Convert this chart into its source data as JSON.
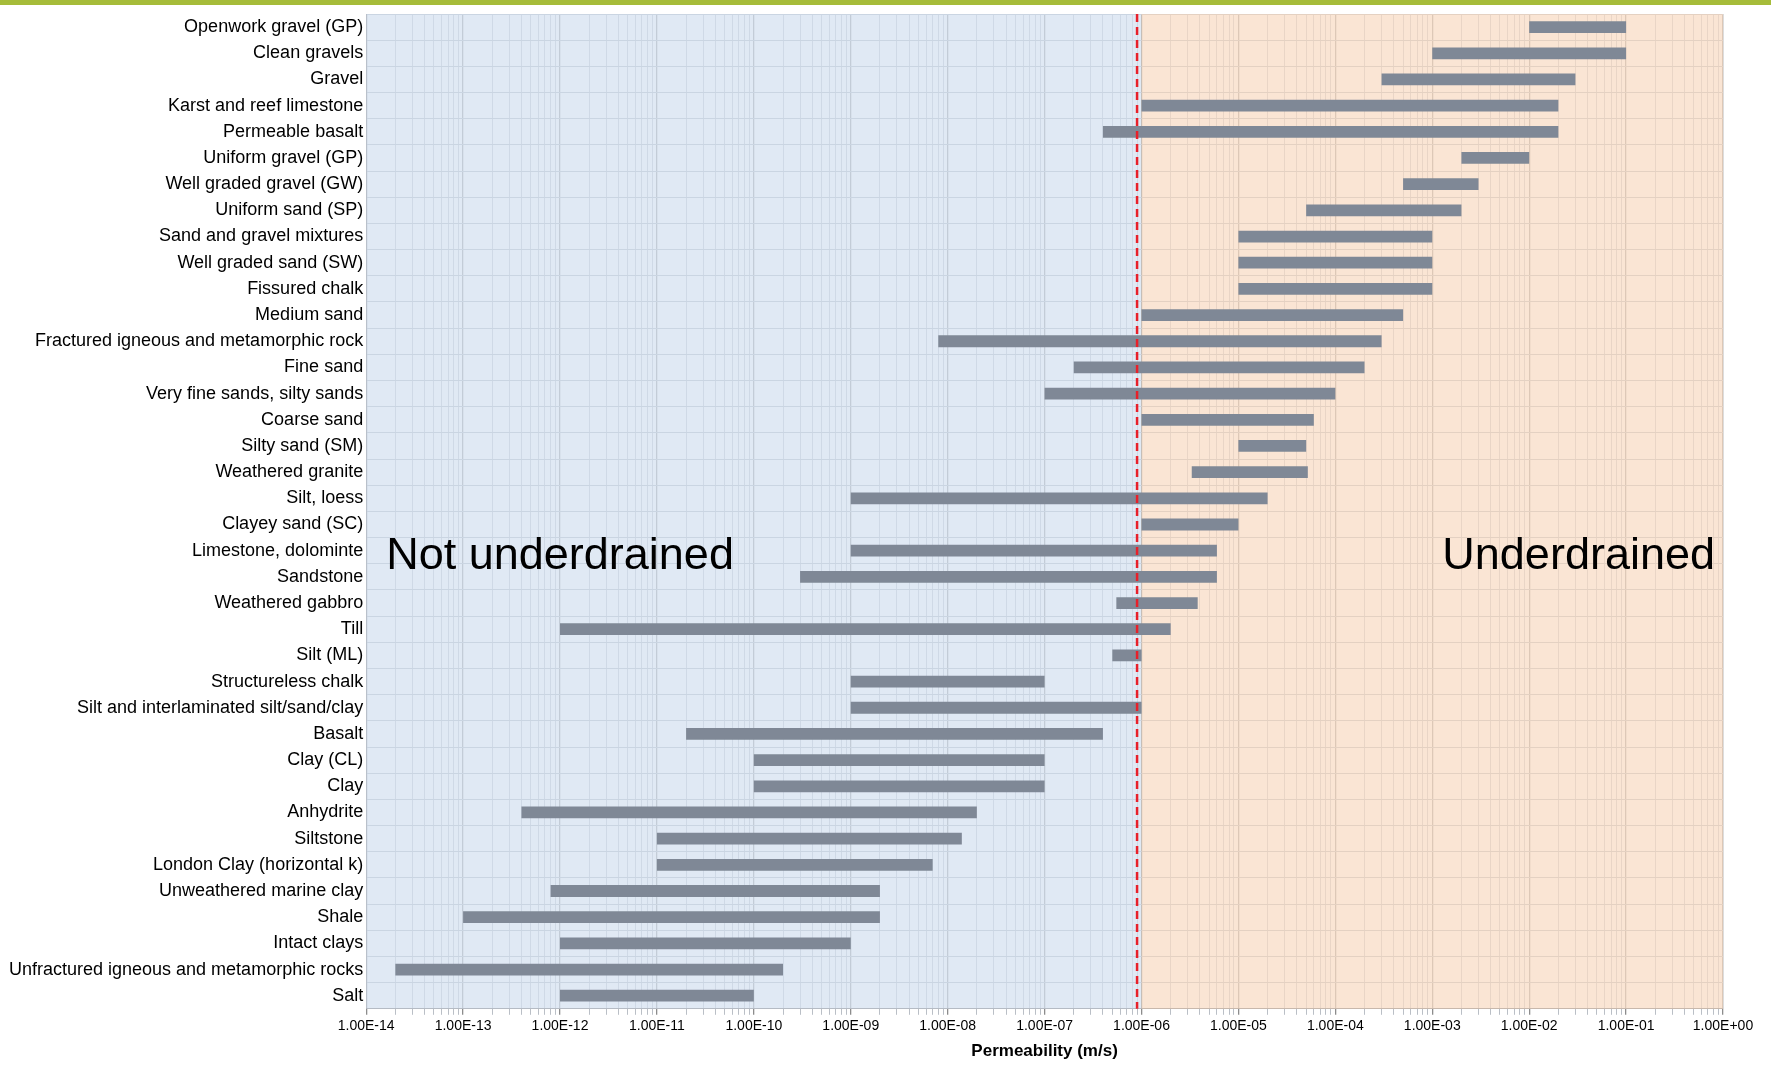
{
  "chart_data": {
    "type": "bar",
    "orientation": "horizontal",
    "xlabel": "Permeability (m/s)",
    "categories": [
      "Openwork gravel (GP)",
      "Clean gravels",
      "Gravel",
      "Karst and reef limestone",
      "Permeable basalt",
      "Uniform gravel (GP)",
      "Well graded gravel (GW)",
      "Uniform sand (SP)",
      "Sand and gravel mixtures",
      "Well graded sand (SW)",
      "Fissured chalk",
      "Medium sand",
      "Fractured igneous and metamorphic rock",
      "Fine sand",
      "Very fine sands, silty sands",
      "Coarse sand",
      "Silty sand (SM)",
      "Weathered granite",
      "Silt, loess",
      "Clayey sand (SC)",
      "Limestone, dolominte",
      "Sandstone",
      "Weathered gabbro",
      "Till",
      "Silt (ML)",
      "Structureless chalk",
      "Silt and interlaminated silt/sand/clay",
      "Basalt",
      "Clay (CL)",
      "Clay",
      "Anhydrite",
      "Siltstone",
      "London Clay (horizontal k)",
      "Unweathered marine clay",
      "Shale",
      "Intact clays",
      "Unfractured igneous and metamorphic rocks",
      "Salt"
    ],
    "base": [
      0.01,
      0.001,
      0.0003,
      1e-06,
      4e-07,
      0.002,
      0.0005,
      5e-05,
      1e-05,
      1e-05,
      1e-05,
      1e-06,
      8e-09,
      2e-07,
      1e-07,
      1e-06,
      1e-05,
      3.3e-06,
      1e-09,
      1e-06,
      1e-09,
      3e-10,
      5.5e-07,
      1e-12,
      5e-07,
      1e-09,
      1e-09,
      2e-11,
      1e-10,
      1e-10,
      4e-13,
      1e-11,
      1e-11,
      8e-13,
      1e-13,
      1e-12,
      2e-14,
      1e-12
    ],
    "values": [
      0.09,
      0.099,
      0.0297,
      0.019999,
      0.0199996,
      0.008,
      0.0025,
      0.00195,
      0.00099,
      0.00099,
      0.00099,
      0.000499,
      0.000299992,
      0.0001998,
      9.99e-05,
      5.9e-05,
      4e-05,
      4.87e-05,
      1.9999e-05,
      9e-06,
      5.999e-06,
      5.9997e-06,
      3.25e-06,
      1.999999e-06,
      5e-07,
      9.9e-08,
      9.99e-07,
      3.9998e-07,
      9.99e-08,
      9.99e-08,
      1.99996e-08,
      1.399e-08,
      6.99e-09,
      1.9992e-09,
      1.9999e-09,
      9.99e-10,
      1.9998e-10,
      9.9e-11
    ],
    "color": "#7f8896",
    "log": "x",
    "xlim": [
      1e-14,
      1
    ],
    "xticks": [
      {
        "value": 1e-14,
        "label": "1.00E-14"
      },
      {
        "value": 1e-13,
        "label": "1.00E-13"
      },
      {
        "value": 1e-12,
        "label": "1.00E-12"
      },
      {
        "value": 1e-11,
        "label": "1.00E-11"
      },
      {
        "value": 1e-10,
        "label": "1.00E-10"
      },
      {
        "value": 1e-09,
        "label": "1.00E-09"
      },
      {
        "value": 1e-08,
        "label": "1.00E-08"
      },
      {
        "value": 1e-07,
        "label": "1.00E-07"
      },
      {
        "value": 1e-06,
        "label": "1.00E-06"
      },
      {
        "value": 1e-05,
        "label": "1.00E-05"
      },
      {
        "value": 0.0001,
        "label": "1.00E-04"
      },
      {
        "value": 0.001,
        "label": "1.00E-03"
      },
      {
        "value": 0.01,
        "label": "1.00E-02"
      },
      {
        "value": 0.1,
        "label": "1.00E-01"
      },
      {
        "value": 1,
        "label": "1.00E+00"
      }
    ],
    "grid": true,
    "bands": [
      {
        "axis": "x",
        "from": 1e-14,
        "to": 1e-06,
        "label": "Not underdrained",
        "color": "#d6e2f0"
      },
      {
        "axis": "x",
        "from": 1e-06,
        "to": 1,
        "label": "Underdrained",
        "color": "#f8dcc6"
      }
    ],
    "ref_lines": [
      {
        "axis": "x",
        "value": 9e-07,
        "color": "#e8202a",
        "line_style": "dashed"
      }
    ]
  }
}
